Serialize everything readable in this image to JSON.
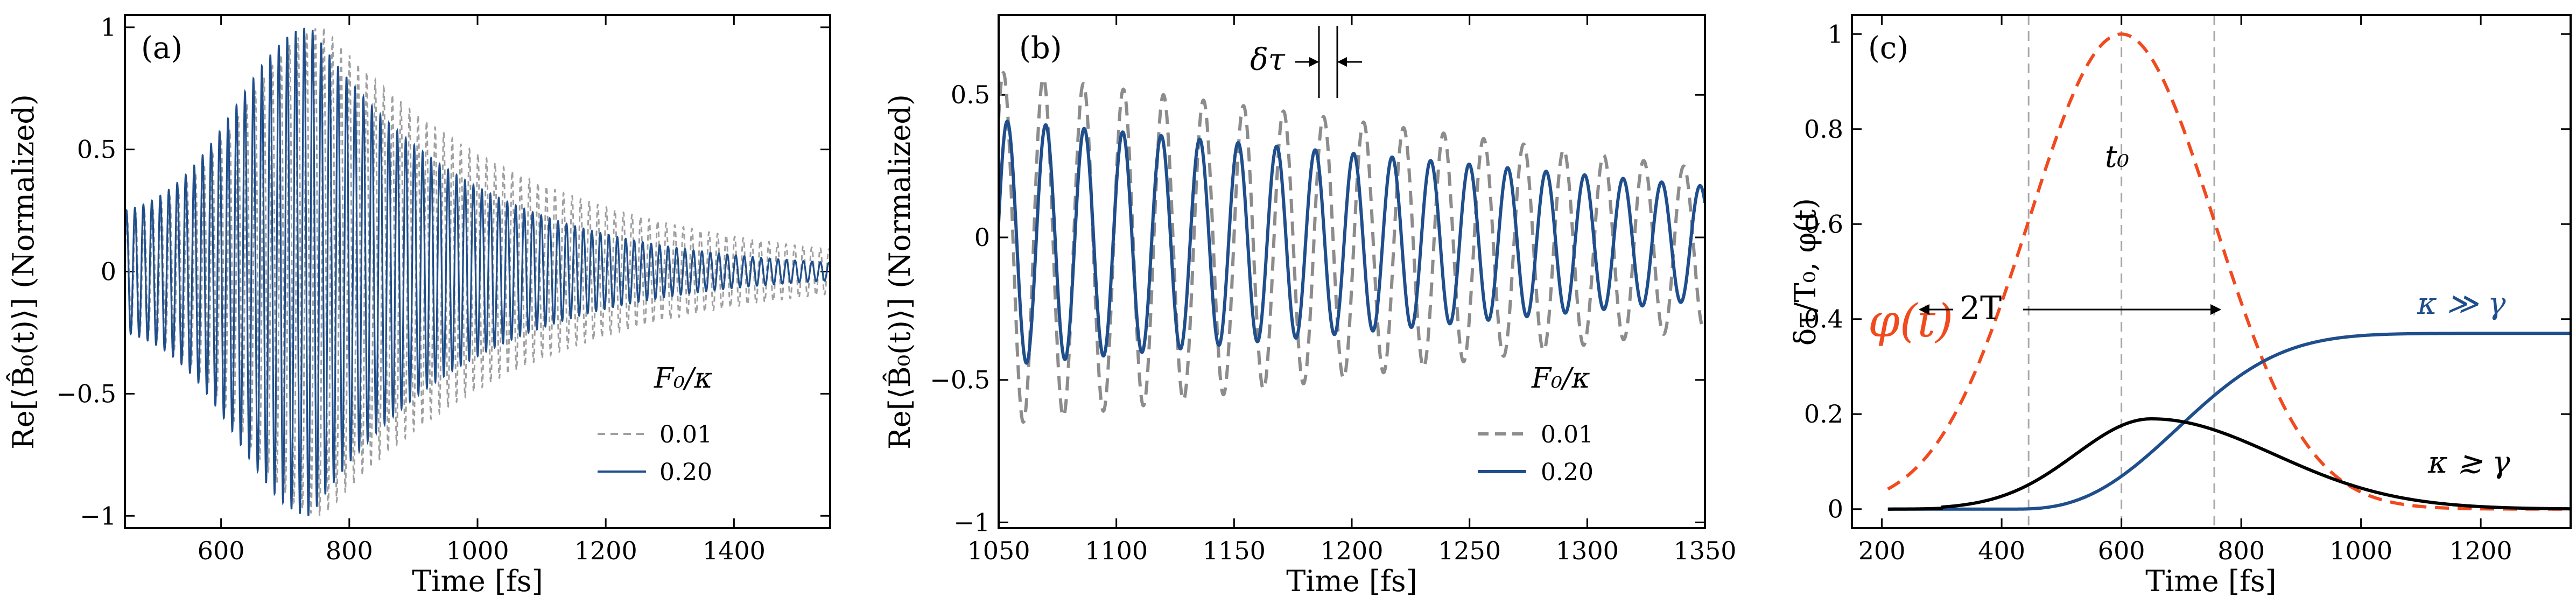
{
  "chart_data": [
    {
      "panel": "(a)",
      "type": "line",
      "xlabel": "Time [fs]",
      "ylabel": "Re[⟨B̂₀(t)⟩] (Normalized)",
      "xlim": [
        450,
        1550
      ],
      "ylim": [
        -1.05,
        1.05
      ],
      "xticks": [
        600,
        800,
        1000,
        1200,
        1400
      ],
      "xtick_labels": [
        "600",
        "800",
        "1000",
        "1200",
        "1400"
      ],
      "yticks": [
        -1,
        -0.5,
        0,
        0.5,
        1
      ],
      "ytick_labels": [
        "−1",
        "−0.5",
        "0",
        "0.5",
        "1"
      ],
      "legend": {
        "title": "F₀/κ",
        "location": "bottom-right"
      },
      "series": [
        {
          "name": "0.01",
          "color": "#a0a0a0",
          "style": "dashed",
          "period_fs": 13.35,
          "peak_time": 760,
          "rise_width": 170,
          "decay_time": 330,
          "start_amp": 0.2
        },
        {
          "name": "0.20",
          "color": "#1f4e8c",
          "style": "solid",
          "period_fs": 13.2,
          "peak_time": 740,
          "rise_width": 160,
          "decay_time": 245,
          "start_amp": 0.22
        }
      ]
    },
    {
      "panel": "(b)",
      "type": "line",
      "xlabel": "Time [fs]",
      "ylabel": "Re[⟨B̂₀(t)⟩] (Normalized)",
      "xlim": [
        1050,
        1350
      ],
      "ylim": [
        -1.02,
        0.78
      ],
      "xticks": [
        1050,
        1100,
        1150,
        1200,
        1250,
        1300,
        1350
      ],
      "xtick_labels": [
        "1050",
        "1100",
        "1150",
        "1200",
        "1250",
        "1300",
        "1350"
      ],
      "yticks": [
        -1,
        -0.5,
        0,
        0.5
      ],
      "ytick_labels": [
        "−1",
        "−0.5",
        "0",
        "0.5"
      ],
      "legend": {
        "title": "F₀/κ",
        "location": "bottom-right"
      },
      "annotation": {
        "text": "δτ",
        "x": 1193
      },
      "series": [
        {
          "name": "0.01",
          "color": "#8c8c8c",
          "style": "dashed",
          "period_fs": 17.0,
          "phase_ref": 1052,
          "amp_start": 0.62,
          "amp_end": 0.28
        },
        {
          "name": "0.20",
          "color": "#1f4e8c",
          "style": "solid",
          "period_fs": 16.35,
          "phase_ref": 1070,
          "amp_start": 0.43,
          "amp_end": 0.2
        }
      ]
    },
    {
      "panel": "(c)",
      "type": "line",
      "xlabel": "Time [fs]",
      "ylabel": "δτ/T₀, φ(t)",
      "xlim": [
        150,
        1350
      ],
      "ylim": [
        -0.04,
        1.04
      ],
      "xticks": [
        200,
        400,
        600,
        800,
        1000,
        1200
      ],
      "xtick_labels": [
        "200",
        "400",
        "600",
        "800",
        "1000",
        "1200"
      ],
      "yticks": [
        0,
        0.2,
        0.4,
        0.6,
        0.8,
        1
      ],
      "ytick_labels": [
        "0",
        "0.2",
        "0.4",
        "0.6",
        "0.8",
        "1"
      ],
      "guides_x": [
        445,
        600,
        755
      ],
      "annotations": {
        "phi": "φ(t)",
        "t0": "t₀",
        "span": "2T",
        "kappa_much_greater": "κ ≫ γ",
        "kappa_greater_approx": "κ ≳ γ"
      },
      "series": [
        {
          "name": "φ(t)",
          "color": "#f04a1e",
          "style": "dashed",
          "center": 600,
          "sigma": 155
        },
        {
          "name": "κ ≫ γ",
          "color": "#1f4e8c",
          "style": "solid",
          "description": "rises from 0 near 450 to 0.37 at 1350"
        },
        {
          "name": "κ ≳ γ",
          "color": "#000000",
          "style": "solid",
          "description": "rises to about 0.19 near 650 then decays to 0 by 1200"
        }
      ]
    }
  ]
}
